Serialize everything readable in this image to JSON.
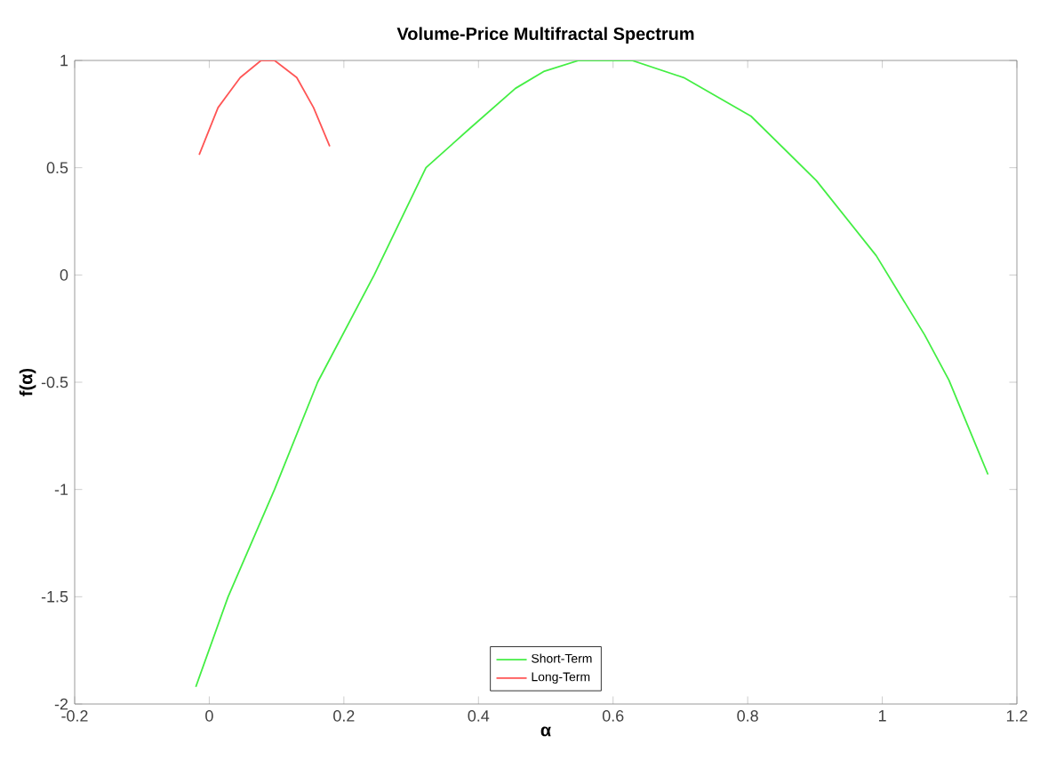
{
  "chart_data": {
    "type": "line",
    "title": "Volume-Price Multifractal Spectrum",
    "xlabel": "α",
    "ylabel": "f(α)",
    "xlim": [
      -0.2,
      1.2
    ],
    "ylim": [
      -2,
      1
    ],
    "xticks": [
      -0.2,
      0,
      0.2,
      0.4,
      0.6,
      0.8,
      1,
      1.2
    ],
    "yticks": [
      -2,
      -1.5,
      -1,
      -0.5,
      0,
      0.5,
      1
    ],
    "legend": "bottom",
    "grid": false,
    "marker": "none",
    "line_style": "solid",
    "series": [
      {
        "name": "Short-Term",
        "color": "#44ee44",
        "x": [
          -0.02,
          0.028,
          0.097,
          0.161,
          0.245,
          0.322,
          0.386,
          0.455,
          0.498,
          0.549,
          0.628,
          0.705,
          0.805,
          0.902,
          0.991,
          1.063,
          1.099,
          1.157
        ],
        "values": [
          -1.92,
          -1.5,
          -1,
          -0.5,
          0,
          0.5,
          0.68,
          0.87,
          0.95,
          1,
          1,
          0.92,
          0.74,
          0.44,
          0.09,
          -0.28,
          -0.49,
          -0.93
        ]
      },
      {
        "name": "Long-Term",
        "color": "#ff5555",
        "x": [
          -0.015,
          0.013,
          0.046,
          0.077,
          0.097,
          0.13,
          0.155,
          0.179
        ],
        "values": [
          0.56,
          0.78,
          0.92,
          1,
          1,
          0.92,
          0.78,
          0.6
        ]
      }
    ]
  }
}
